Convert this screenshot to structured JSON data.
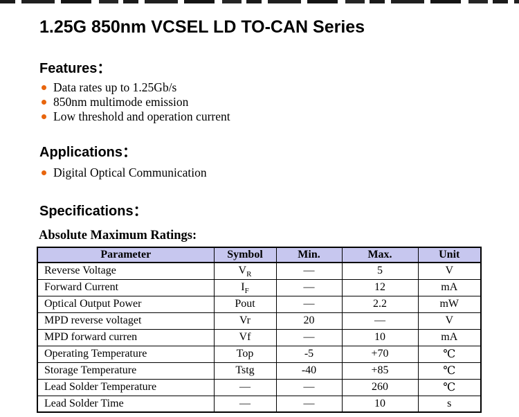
{
  "page": {
    "title": "1.25G 850nm VCSEL LD TO-CAN Series"
  },
  "sections": {
    "features": {
      "heading": "Features：",
      "items": [
        "Data rates up to 1.25Gb/s",
        "850nm multimode emission",
        "Low threshold and operation current"
      ]
    },
    "applications": {
      "heading": "Applications：",
      "items": [
        "Digital Optical Communication"
      ]
    },
    "specifications": {
      "heading": "Specifications：",
      "subheading": "Absolute Maximum Ratings:"
    }
  },
  "table": {
    "headers": [
      "Parameter",
      "Symbol",
      "Min.",
      "Max.",
      "Unit"
    ],
    "rows": [
      [
        "Reverse Voltage",
        [
          "V",
          "R"
        ],
        "—",
        "5",
        "V"
      ],
      [
        "Forward Current",
        [
          "I",
          "F"
        ],
        "—",
        "12",
        "mA"
      ],
      [
        "Optical Output Power",
        "Pout",
        "—",
        "2.2",
        "mW"
      ],
      [
        "MPD reverse voltaget",
        "Vr",
        "20",
        "—",
        "V"
      ],
      [
        "MPD forward curren",
        "Vf",
        "—",
        "10",
        "mA"
      ],
      [
        "Operating Temperature",
        "Top",
        "-5",
        "+70",
        "℃"
      ],
      [
        "Storage Temperature",
        "Tstg",
        "-40",
        "+85",
        "℃"
      ],
      [
        "Lead Solder Temperature",
        "—",
        "—",
        "260",
        "℃"
      ],
      [
        "Lead Solder Time",
        "—",
        "—",
        "10",
        "s"
      ]
    ]
  },
  "colors": {
    "bullet_accent": "#e8650d",
    "table_header_bg": "#c7c7ef",
    "table_border": "#000000",
    "text": "#000000"
  }
}
